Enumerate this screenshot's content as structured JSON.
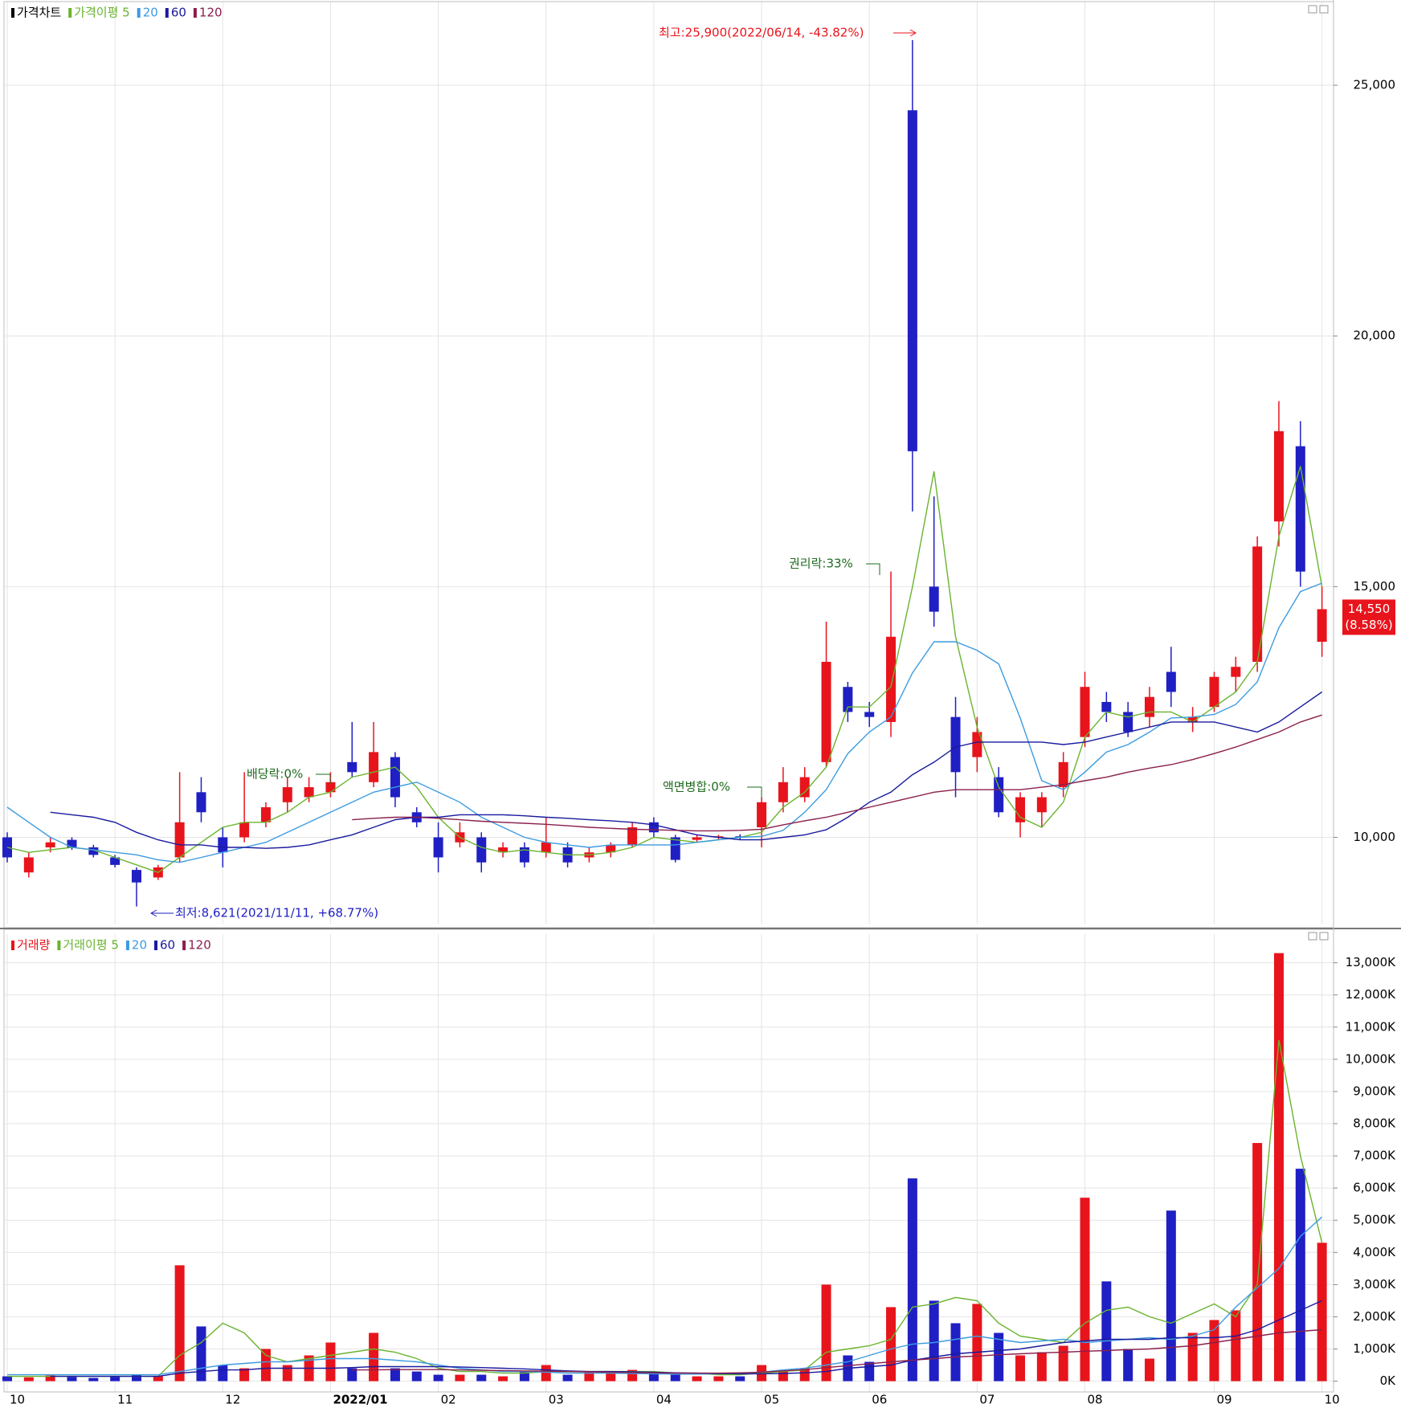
{
  "chart_data": [
    {
      "type": "candlestick",
      "name": "가격차트",
      "color": "#000000",
      "up_color": "#e8141c",
      "down_color": "#1f1fc4",
      "open": [
        10000,
        9300,
        9800,
        9950,
        9800,
        9600,
        9350,
        9200,
        9600,
        10900,
        10000,
        10000,
        10300,
        10700,
        10800,
        10900,
        11500,
        11100,
        11600,
        10500,
        10000,
        9900,
        10000,
        9700,
        9800,
        9700,
        9800,
        9600,
        9700,
        9850,
        10300,
        10000,
        9950,
        10000,
        10020,
        10200,
        10700,
        10800,
        11500,
        13000,
        12500,
        12300,
        24500,
        15000,
        12400,
        11600,
        11200,
        10300,
        10500,
        11000,
        12000,
        12700,
        12500,
        12400,
        13300,
        12300,
        12600,
        13200,
        13500,
        16300,
        17800,
        13900
      ],
      "high": [
        10100,
        9700,
        10000,
        10000,
        9850,
        9650,
        9400,
        9450,
        11300,
        11200,
        10200,
        11300,
        10700,
        11200,
        11200,
        11300,
        12300,
        12300,
        11700,
        10600,
        10300,
        10300,
        10100,
        9900,
        9900,
        10400,
        9900,
        9800,
        9900,
        10300,
        10400,
        10050,
        10050,
        10050,
        10060,
        10800,
        11400,
        11400,
        14300,
        13100,
        12700,
        15300,
        25900,
        16800,
        12800,
        12400,
        11400,
        10900,
        10900,
        11700,
        13300,
        12900,
        12700,
        13000,
        13800,
        12600,
        13300,
        13600,
        16000,
        18700,
        18300,
        15000
      ],
      "low": [
        9500,
        9200,
        9700,
        9750,
        9600,
        9400,
        8621,
        9150,
        9500,
        10300,
        9400,
        9900,
        10200,
        10500,
        10700,
        10800,
        11200,
        11000,
        10600,
        10200,
        9300,
        9800,
        9300,
        9600,
        9400,
        9600,
        9400,
        9500,
        9600,
        9800,
        10000,
        9500,
        9900,
        9950,
        9950,
        9800,
        10500,
        10700,
        11400,
        12300,
        12200,
        12000,
        16500,
        14200,
        10800,
        11300,
        10400,
        10000,
        10200,
        10800,
        11800,
        12300,
        12000,
        12200,
        12600,
        12100,
        12500,
        12900,
        13300,
        15800,
        15000,
        13600
      ],
      "close": [
        9600,
        9600,
        9900,
        9800,
        9650,
        9450,
        9100,
        9400,
        10300,
        10500,
        9700,
        10300,
        10600,
        11000,
        11000,
        11100,
        11300,
        11700,
        10800,
        10300,
        9600,
        10100,
        9500,
        9800,
        9500,
        9900,
        9500,
        9700,
        9850,
        10200,
        10100,
        9550,
        10000,
        10020,
        10000,
        10700,
        11100,
        11200,
        13500,
        12500,
        12400,
        14000,
        17700,
        14500,
        11300,
        12100,
        10500,
        10800,
        10800,
        11500,
        13000,
        12500,
        12100,
        12800,
        12900,
        12400,
        13200,
        13400,
        15800,
        18100,
        15300,
        14550
      ],
      "series": [
        {
          "name": "가격이평 5",
          "color": "#69b42e",
          "values": [
            9800,
            9700,
            9750,
            9800,
            9750,
            9600,
            9450,
            9300,
            9600,
            9900,
            10200,
            10300,
            10300,
            10500,
            10800,
            10900,
            11200,
            11300,
            11400,
            11000,
            10400,
            10000,
            9800,
            9700,
            9750,
            9700,
            9650,
            9650,
            9700,
            9800,
            10000,
            9950,
            9900,
            9950,
            10000,
            10100,
            10600,
            10900,
            11400,
            12600,
            12600,
            13000,
            15000,
            17300,
            14000,
            12200,
            11000,
            10400,
            10200,
            10700,
            12000,
            12500,
            12400,
            12500,
            12500,
            12300,
            12600,
            12900,
            13500,
            16000,
            17400,
            15000
          ]
        },
        {
          "name": "20",
          "color": "#3c9be0",
          "values": [
            10600,
            10300,
            10000,
            9800,
            9750,
            9700,
            9650,
            9550,
            9500,
            9600,
            9700,
            9800,
            9900,
            10100,
            10300,
            10500,
            10700,
            10900,
            11000,
            11100,
            10900,
            10700,
            10400,
            10200,
            10000,
            9900,
            9850,
            9800,
            9850,
            9850,
            9850,
            9850,
            9900,
            9950,
            10000,
            10020,
            10140,
            10500,
            10950,
            11670,
            12100,
            12400,
            13280,
            13900,
            13900,
            13730,
            13460,
            12380,
            11130,
            10950,
            11300,
            11700,
            11850,
            12100,
            12380,
            12400,
            12450,
            12650,
            13100,
            14180,
            14900,
            15070
          ]
        },
        {
          "name": "60",
          "color": "#1a1a9e",
          "values": [
            null,
            null,
            10500,
            10450,
            10400,
            10300,
            10100,
            9950,
            9850,
            9850,
            9800,
            9800,
            9780,
            9800,
            9850,
            9950,
            10050,
            10200,
            10350,
            10400,
            10400,
            10450,
            10450,
            10450,
            10430,
            10400,
            10380,
            10350,
            10330,
            10300,
            10250,
            10150,
            10050,
            10000,
            9950,
            9950,
            10000,
            10050,
            10150,
            10400,
            10700,
            10900,
            11250,
            11500,
            11800,
            11900,
            11900,
            11900,
            11900,
            11850,
            11900,
            12000,
            12100,
            12200,
            12300,
            12300,
            12300,
            12200,
            12100,
            12300,
            12600,
            12900
          ]
        },
        {
          "name": "120",
          "color": "#8a1f4c",
          "values": [
            null,
            null,
            null,
            null,
            null,
            null,
            null,
            null,
            null,
            null,
            null,
            null,
            null,
            null,
            null,
            null,
            10350,
            10380,
            10400,
            10400,
            10380,
            10350,
            10320,
            10300,
            10280,
            10260,
            10230,
            10200,
            10180,
            10160,
            10150,
            10140,
            10130,
            10130,
            10140,
            10160,
            10250,
            10330,
            10400,
            10500,
            10600,
            10700,
            10800,
            10900,
            10950,
            10950,
            10950,
            10950,
            11000,
            11050,
            11130,
            11200,
            11300,
            11380,
            11450,
            11550,
            11670,
            11800,
            11950,
            12100,
            12300,
            12440
          ]
        }
      ],
      "ylim": [
        8262,
        26667
      ],
      "yticks": [
        {
          "value": 10000,
          "label": "10,000"
        },
        {
          "value": 15000,
          "label": "15,000"
        },
        {
          "value": 20000,
          "label": "20,000"
        },
        {
          "value": 25000,
          "label": "25,000"
        }
      ],
      "grid": true,
      "annotations": [
        "최고:25,900(2022/06/14, -43.82%)",
        "최저:8,621(2021/11/11, +68.77%)",
        "배당락:0%",
        "액면병합:0%",
        "권리락:33%"
      ],
      "last_price": "14,550",
      "last_change": "(8.58%)"
    },
    {
      "type": "bar",
      "name": "거래량",
      "color": "#e8141c",
      "categories": [
        "10",
        null,
        null,
        null,
        null,
        "11",
        null,
        null,
        null,
        null,
        "12",
        null,
        null,
        null,
        null,
        "2022/01",
        null,
        null,
        null,
        null,
        "02",
        null,
        null,
        null,
        null,
        "03",
        null,
        null,
        null,
        null,
        "04",
        null,
        null,
        null,
        null,
        "05",
        null,
        null,
        null,
        null,
        "06",
        null,
        null,
        null,
        null,
        "07",
        null,
        null,
        null,
        null,
        "08",
        null,
        null,
        null,
        null,
        null,
        "09",
        null,
        null,
        null,
        null,
        "10"
      ],
      "values": [
        150,
        120,
        180,
        130,
        100,
        150,
        200,
        160,
        3600,
        1700,
        500,
        400,
        1000,
        500,
        800,
        1200,
        400,
        1500,
        400,
        300,
        200,
        200,
        200,
        150,
        300,
        500,
        200,
        300,
        250,
        350,
        250,
        200,
        150,
        150,
        150,
        500,
        300,
        400,
        3000,
        800,
        600,
        2300,
        6300,
        2500,
        1800,
        2400,
        1500,
        800,
        900,
        1100,
        5700,
        3100,
        1000,
        700,
        5300,
        1500,
        1900,
        2200,
        7400,
        13300,
        6600,
        4300
      ],
      "series": [
        {
          "name": "거래이평 5",
          "color": "#69b42e",
          "values": [
            150,
            150,
            150,
            150,
            150,
            150,
            150,
            150,
            800,
            1200,
            1800,
            1500,
            800,
            600,
            700,
            800,
            900,
            1000,
            900,
            700,
            400,
            300,
            300,
            250,
            250,
            300,
            300,
            300,
            300,
            300,
            300,
            250,
            250,
            200,
            200,
            250,
            300,
            350,
            900,
            1000,
            1100,
            1300,
            2300,
            2400,
            2600,
            2500,
            1800,
            1400,
            1300,
            1200,
            1800,
            2200,
            2300,
            2000,
            1800,
            2100,
            2400,
            2000,
            3000,
            10600,
            7000,
            4300
          ]
        },
        {
          "name": "20",
          "color": "#3c9be0",
          "values": [
            200,
            200,
            200,
            200,
            200,
            200,
            200,
            200,
            300,
            400,
            500,
            550,
            600,
            600,
            650,
            700,
            700,
            700,
            650,
            600,
            500,
            400,
            350,
            300,
            300,
            280,
            250,
            250,
            250,
            240,
            230,
            220,
            220,
            230,
            250,
            280,
            350,
            400,
            500,
            600,
            800,
            1000,
            1150,
            1200,
            1300,
            1400,
            1300,
            1200,
            1250,
            1300,
            1200,
            1250,
            1300,
            1350,
            1300,
            1400,
            1600,
            2300,
            2900,
            3500,
            4500,
            5100
          ]
        },
        {
          "name": "60",
          "color": "#1a1a9e",
          "values": [
            null,
            null,
            150,
            150,
            150,
            150,
            150,
            150,
            250,
            300,
            350,
            350,
            400,
            400,
            400,
            400,
            420,
            450,
            450,
            450,
            450,
            440,
            420,
            400,
            380,
            350,
            320,
            300,
            300,
            290,
            280,
            260,
            250,
            240,
            230,
            230,
            240,
            260,
            300,
            400,
            450,
            500,
            650,
            750,
            850,
            900,
            950,
            1000,
            1100,
            1200,
            1250,
            1300,
            1300,
            1300,
            1350,
            1350,
            1350,
            1400,
            1600,
            1900,
            2200,
            2500
          ]
        },
        {
          "name": "120",
          "color": "#8a1f4c",
          "values": [
            null,
            null,
            null,
            null,
            null,
            null,
            null,
            null,
            null,
            null,
            null,
            null,
            null,
            null,
            null,
            null,
            350,
            350,
            360,
            360,
            360,
            350,
            340,
            330,
            320,
            310,
            300,
            290,
            280,
            270,
            260,
            250,
            250,
            250,
            260,
            280,
            320,
            360,
            420,
            480,
            540,
            600,
            650,
            700,
            750,
            780,
            820,
            850,
            880,
            900,
            930,
            950,
            980,
            1000,
            1050,
            1100,
            1200,
            1300,
            1400,
            1500,
            1550,
            1600
          ]
        }
      ],
      "ylim": [
        -335,
        13890
      ],
      "yticks": [
        {
          "value": 0,
          "label": "0K"
        },
        {
          "value": 1000,
          "label": "1,000K"
        },
        {
          "value": 2000,
          "label": "2,000K"
        },
        {
          "value": 3000,
          "label": "3,000K"
        },
        {
          "value": 4000,
          "label": "4,000K"
        },
        {
          "value": 5000,
          "label": "5,000K"
        },
        {
          "value": 6000,
          "label": "6,000K"
        },
        {
          "value": 7000,
          "label": "7,000K"
        },
        {
          "value": 8000,
          "label": "8,000K"
        },
        {
          "value": 9000,
          "label": "9,000K"
        },
        {
          "value": 10000,
          "label": "10,000K"
        },
        {
          "value": 11000,
          "label": "11,000K"
        },
        {
          "value": 12000,
          "label": "12,000K"
        },
        {
          "value": 13000,
          "label": "13,000K"
        }
      ],
      "grid": true
    }
  ]
}
